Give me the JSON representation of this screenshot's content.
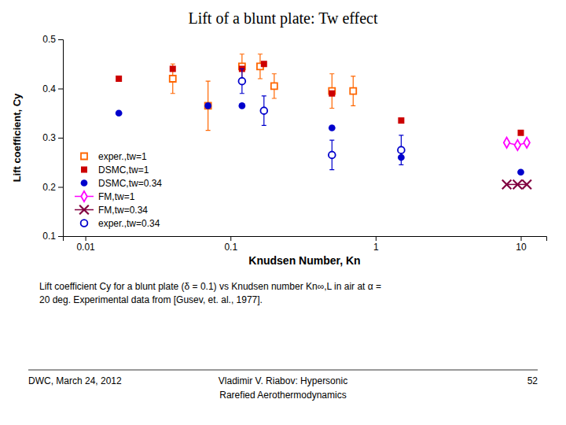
{
  "chart_data": {
    "type": "scatter",
    "title": "Lift of a blunt plate: Tw effect",
    "x_label": "Knudsen Number, Kn",
    "y_label": "Lift coefficient, Cy",
    "log": "x",
    "xlim": [
      0.007,
      15
    ],
    "ylim": [
      0.1,
      0.5
    ],
    "xticks": [
      0.01,
      0.1,
      1,
      10
    ],
    "yticks": [
      0.1,
      0.2,
      0.3,
      0.4,
      0.5
    ],
    "grid": false,
    "legend": "lower left",
    "series": [
      {
        "name": "exper.,tw=1",
        "type": "scatter",
        "marker": "square-open",
        "color": "#ff6600",
        "x": [
          0.04,
          0.07,
          0.12,
          0.16,
          0.2,
          0.5,
          0.7
        ],
        "values": [
          0.42,
          0.365,
          0.445,
          0.445,
          0.405,
          0.395,
          0.395
        ],
        "error": [
          0.03,
          0.05,
          0.025,
          0.025,
          0.025,
          0.035,
          0.03
        ]
      },
      {
        "name": "DSMC,tw=1",
        "type": "scatter",
        "marker": "square",
        "color": "#cc0000",
        "x": [
          0.017,
          0.04,
          0.12,
          0.17,
          0.5,
          1.5,
          10.0
        ],
        "values": [
          0.42,
          0.44,
          0.44,
          0.45,
          0.39,
          0.335,
          0.31
        ]
      },
      {
        "name": "DSMC,tw=0.34",
        "type": "scatter",
        "marker": "circle",
        "color": "#0000cc",
        "x": [
          0.017,
          0.07,
          0.12,
          0.5,
          1.5,
          10.0
        ],
        "values": [
          0.35,
          0.365,
          0.365,
          0.32,
          0.26,
          0.23
        ]
      },
      {
        "name": "FM,tw=1",
        "type": "line",
        "marker": "diamond-open",
        "color": "#ff00ff",
        "x": [
          8.0,
          9.5,
          11.0
        ],
        "values": [
          0.29,
          0.285,
          0.29
        ]
      },
      {
        "name": "FM,tw=0.34",
        "type": "line",
        "marker": "x",
        "color": "#800040",
        "x": [
          8.0,
          9.5,
          11.0
        ],
        "values": [
          0.205,
          0.205,
          0.205
        ]
      },
      {
        "name": "exper.,tw=0.34",
        "type": "scatter",
        "marker": "circle-open",
        "color": "#0000cc",
        "x": [
          0.12,
          0.17,
          0.5,
          1.5
        ],
        "values": [
          0.415,
          0.355,
          0.265,
          0.275
        ],
        "error": [
          0.025,
          0.03,
          0.03,
          0.03
        ]
      }
    ],
    "caption": [
      "Lift coefficient Cy for a blunt plate (δ = 0.1) vs Knudsen number Kn∞,L in air at α =",
      "20 deg. Experimental data from [Gusev, et. al., 1977]."
    ],
    "footer_left": "DWC, March 24, 2012",
    "footer_center": [
      "Vladimir V. Riabov: Hypersonic",
      "Rarefied Aerothermodynamics"
    ],
    "footer_right": "52"
  }
}
